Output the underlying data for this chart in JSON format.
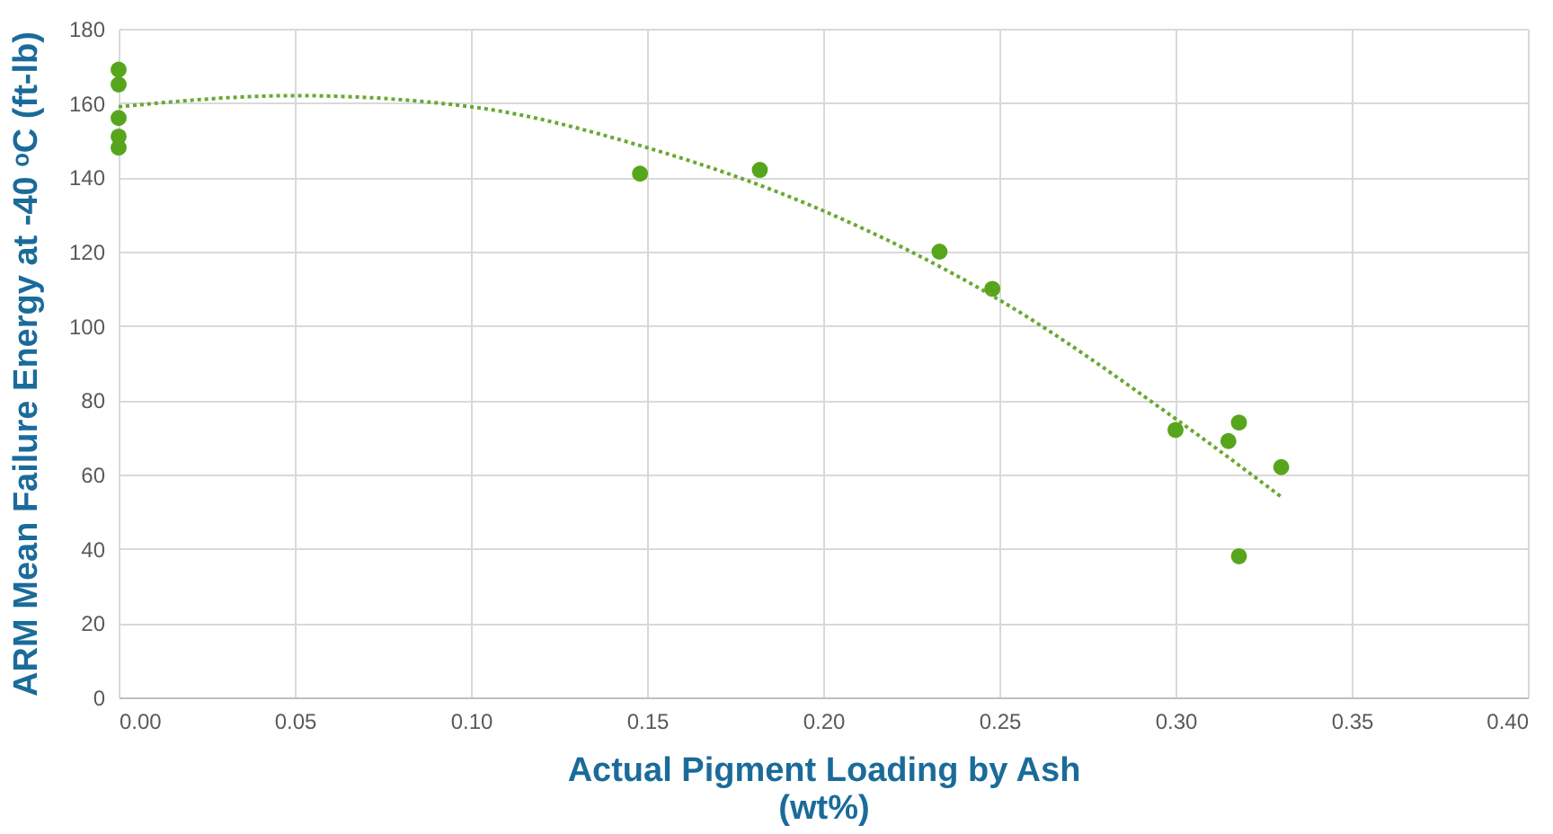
{
  "chart_data": {
    "type": "scatter",
    "xlabel": "Actual Pigment Loading by Ash\n(wt%)",
    "ylabel": "ARM Mean Failure Energy at -40 ᵒC (ft-lb)",
    "xlim": [
      0,
      0.4
    ],
    "xticks": [
      {
        "value": 0,
        "label": "0.00"
      },
      {
        "value": 0.05,
        "label": "0.05"
      },
      {
        "value": 0.1,
        "label": "0.10"
      },
      {
        "value": 0.15,
        "label": "0.15"
      },
      {
        "value": 0.2,
        "label": "0.20"
      },
      {
        "value": 0.25,
        "label": "0.25"
      },
      {
        "value": 0.3,
        "label": "0.30"
      },
      {
        "value": 0.35,
        "label": "0.35"
      },
      {
        "value": 0.4,
        "label": "0.40"
      }
    ],
    "ylim": [
      0,
      180
    ],
    "yticks": [
      0,
      20,
      40,
      60,
      80,
      100,
      120,
      140,
      160,
      180
    ],
    "grid": true,
    "series": [
      {
        "marker": "circle",
        "color": "#57a51c",
        "x": [
          0,
          0,
          0,
          0,
          0,
          0.148,
          0.182,
          0.233,
          0.248,
          0.3,
          0.315,
          0.318,
          0.33,
          0.318
        ],
        "values": [
          169,
          165,
          156,
          151,
          148,
          141,
          142,
          120,
          110,
          72,
          69,
          74,
          62,
          38
        ]
      },
      {
        "type": "line",
        "line_style": "dotted",
        "color": "#6aa832",
        "x": [
          0,
          0.05,
          0.1,
          0.15,
          0.2,
          0.25,
          0.3,
          0.33
        ],
        "values": [
          159,
          162,
          159,
          148,
          131,
          107,
          75,
          54
        ]
      }
    ]
  }
}
